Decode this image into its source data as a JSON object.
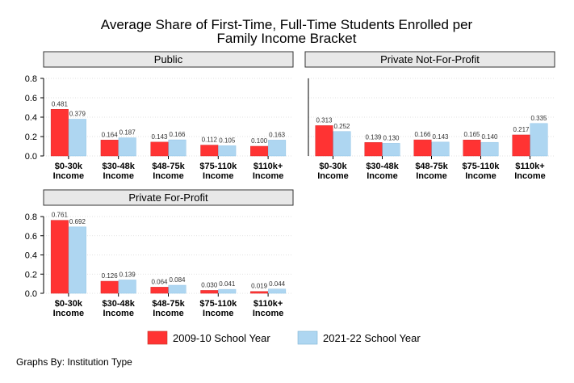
{
  "chart_data": {
    "type": "bar",
    "title_lines": [
      "Average Share of First-Time, Full-Time Students Enrolled per",
      "Family Income Bracket"
    ],
    "note": "Graphs By: Institution Type",
    "categories": [
      [
        "$0-30k",
        "Income"
      ],
      [
        "$30-48k",
        "Income"
      ],
      [
        "$48-75k",
        "Income"
      ],
      [
        "$75-110k",
        "Income"
      ],
      [
        "$110k+",
        "Income"
      ]
    ],
    "legend": {
      "placement": "bottom"
    },
    "series_names": [
      "2009-10 School Year",
      "2021-22 School Year"
    ],
    "colors": [
      "#ff3333",
      "#aed6f1"
    ],
    "ylim": [
      0,
      0.8
    ],
    "yticks": [
      "0.0",
      "0.2",
      "0.4",
      "0.6",
      "0.8"
    ],
    "grid": true,
    "panels": [
      {
        "title": "Public",
        "series": [
          {
            "name": "2009-10 School Year",
            "values": [
              0.481,
              0.164,
              0.143,
              0.112,
              0.1
            ],
            "labels": [
              "0.481",
              "0.164",
              "0.143",
              "0.112",
              "0.100"
            ]
          },
          {
            "name": "2021-22 School Year",
            "values": [
              0.379,
              0.187,
              0.166,
              0.105,
              0.163
            ],
            "labels": [
              "0.379",
              "0.187",
              "0.166",
              "0.105",
              "0.163"
            ]
          }
        ]
      },
      {
        "title": "Private Not-For-Profit",
        "series": [
          {
            "name": "2009-10 School Year",
            "values": [
              0.313,
              0.139,
              0.166,
              0.165,
              0.217
            ],
            "labels": [
              "0.313",
              "0.139",
              "0.166",
              "0.165",
              "0.217"
            ]
          },
          {
            "name": "2021-22 School Year",
            "values": [
              0.252,
              0.13,
              0.143,
              0.14,
              0.335
            ],
            "labels": [
              "0.252",
              "0.130",
              "0.143",
              "0.140",
              "0.335"
            ]
          }
        ]
      },
      {
        "title": "Private For-Profit",
        "series": [
          {
            "name": "2009-10 School Year",
            "values": [
              0.761,
              0.126,
              0.064,
              0.03,
              0.019
            ],
            "labels": [
              "0.761",
              "0.126",
              "0.064",
              "0.030",
              "0.019"
            ]
          },
          {
            "name": "2021-22 School Year",
            "values": [
              0.692,
              0.139,
              0.084,
              0.041,
              0.044
            ],
            "labels": [
              "0.692",
              "0.139",
              "0.084",
              "0.041",
              "0.044"
            ]
          }
        ]
      }
    ]
  }
}
